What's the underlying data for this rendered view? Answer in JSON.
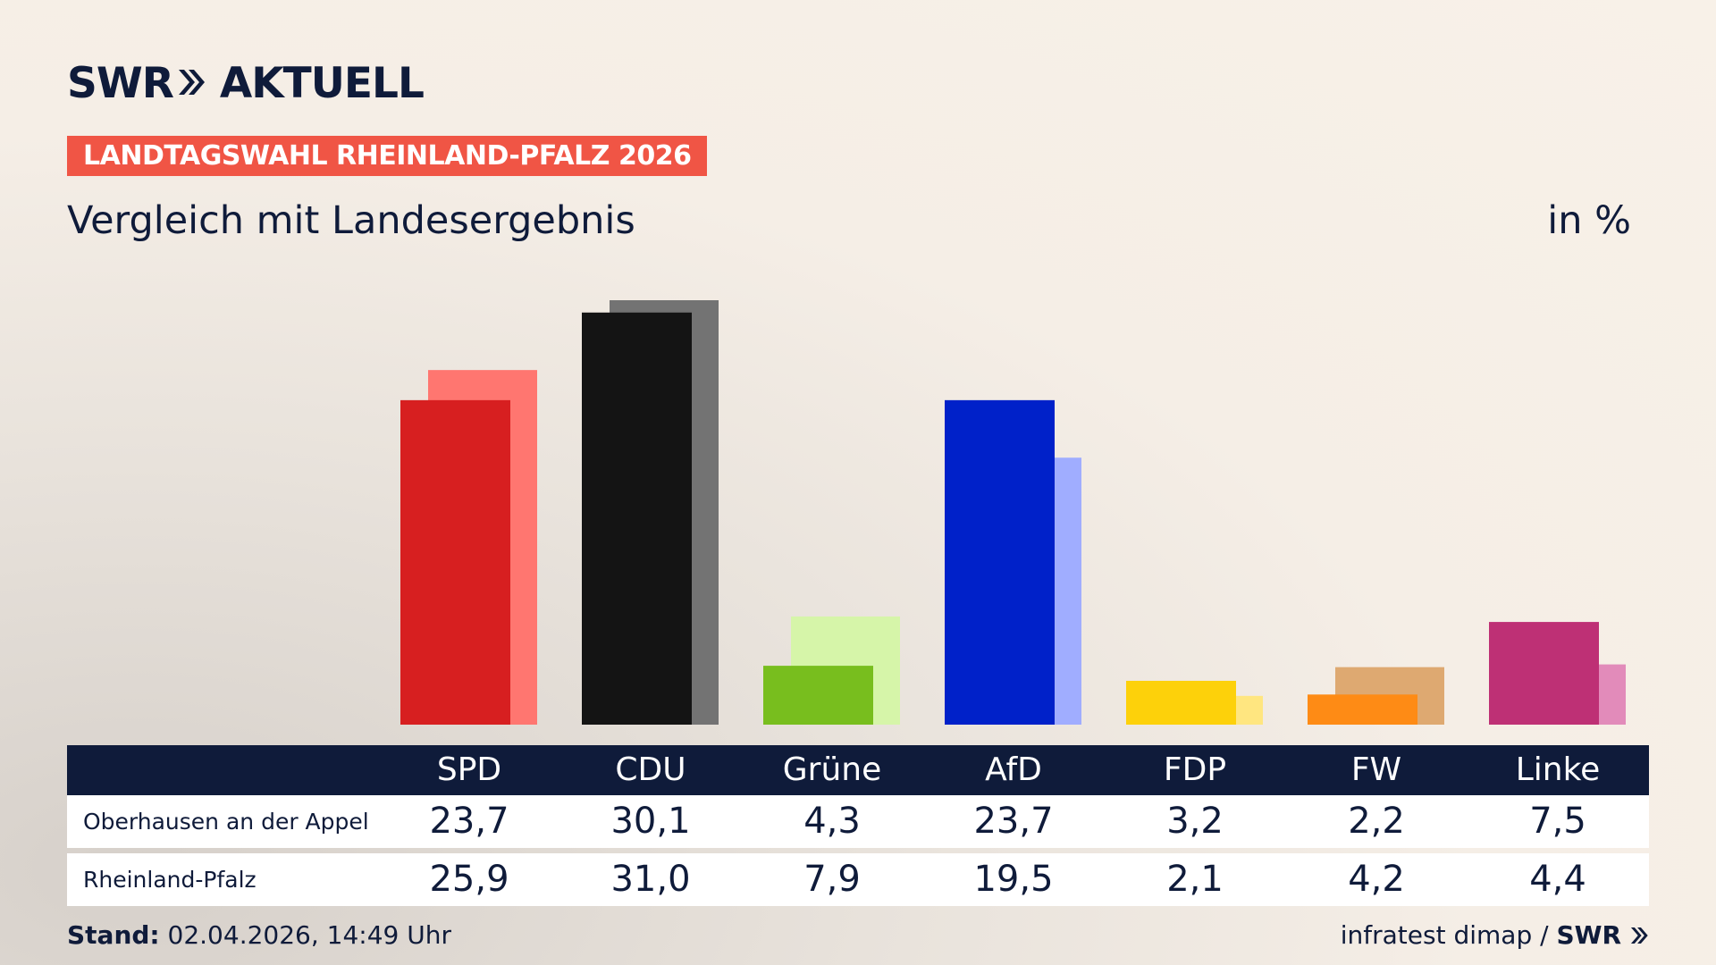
{
  "brand": {
    "logo_left": "SWR",
    "logo_right": "AKTUELL",
    "source": "infratest dimap /",
    "source_brand": "SWR"
  },
  "badge": "LANDTAGSWAHL RHEINLAND-PFALZ 2026",
  "subtitle": "Vergleich mit Landesergebnis",
  "unit": "in %",
  "stand_label": "Stand:",
  "stand_value": "02.04.2026, 14:49 Uhr",
  "colors": {
    "navy": "#0f1b3a",
    "badge": "#f05545"
  },
  "chart_data": {
    "type": "bar",
    "categories": [
      "SPD",
      "CDU",
      "Grüne",
      "AfD",
      "FDP",
      "FW",
      "Linke"
    ],
    "series": [
      {
        "name": "Oberhausen an der Appel",
        "values": [
          23.7,
          30.1,
          4.3,
          23.7,
          3.2,
          2.2,
          7.5
        ]
      },
      {
        "name": "Rheinland-Pfalz",
        "values": [
          25.9,
          31.0,
          7.9,
          19.5,
          2.1,
          4.2,
          4.4
        ]
      }
    ],
    "display_values": [
      [
        "23,7",
        "30,1",
        "4,3",
        "23,7",
        "3,2",
        "2,2",
        "7,5"
      ],
      [
        "25,9",
        "31,0",
        "7,9",
        "19,5",
        "2,1",
        "4,2",
        "4,4"
      ]
    ],
    "colors_primary": [
      "#d71f20",
      "#141414",
      "#78be1e",
      "#0021c9",
      "#fdd10a",
      "#fe8b15",
      "#be3075"
    ],
    "colors_secondary": [
      "#ff7670",
      "#737373",
      "#d6f5a9",
      "#a0adff",
      "#ffe680",
      "#dea971",
      "#e28bba"
    ],
    "ylim": [
      0,
      31.0
    ],
    "grid": false,
    "legend": "table-below"
  }
}
